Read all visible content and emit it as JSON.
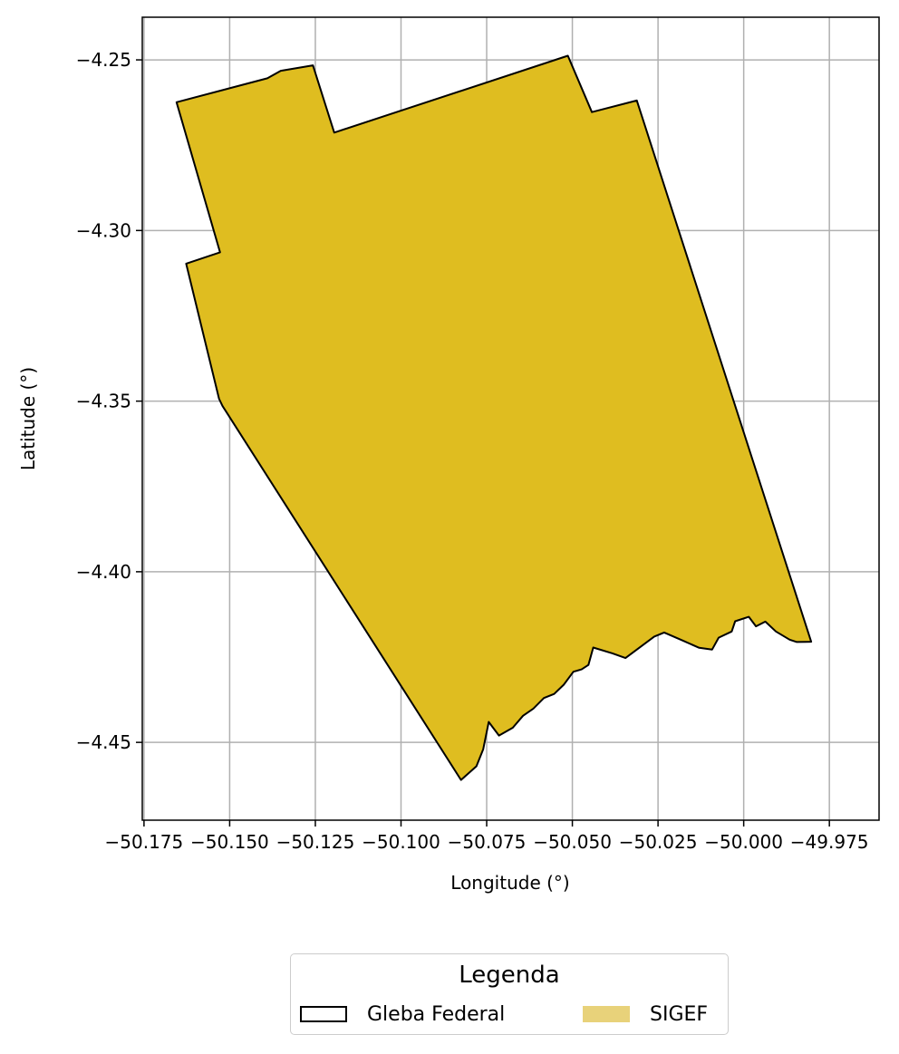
{
  "chart_data": {
    "type": "map",
    "xlabel": "Longitude (°)",
    "ylabel": "Latitude (°)",
    "xlim": [
      -50.1755,
      -49.9605
    ],
    "ylim": [
      -4.4728,
      -4.2375
    ],
    "grid": true,
    "x_ticks": [
      -50.175,
      -50.15,
      -50.125,
      -50.1,
      -50.075,
      -50.05,
      -50.025,
      -50.0,
      -49.975
    ],
    "x_tick_labels": [
      "−50.175",
      "−50.150",
      "−50.125",
      "−50.100",
      "−50.075",
      "−50.050",
      "−50.025",
      "−50.000",
      "−49.975"
    ],
    "y_ticks": [
      -4.25,
      -4.3,
      -4.35,
      -4.4,
      -4.45
    ],
    "y_tick_labels": [
      "−4.25",
      "−4.30",
      "−4.35",
      "−4.40",
      "−4.45"
    ],
    "fill_color": "#dfbd20",
    "edge_color": "#000000",
    "polygon": [
      [
        -50.1655,
        -4.2624
      ],
      [
        -50.139,
        -4.2554
      ],
      [
        -50.1351,
        -4.2532
      ],
      [
        -50.1257,
        -4.2516
      ],
      [
        -50.1195,
        -4.2713
      ],
      [
        -50.0513,
        -4.2488
      ],
      [
        -50.0443,
        -4.2653
      ],
      [
        -50.0312,
        -4.2619
      ],
      [
        -49.9803,
        -4.4205
      ],
      [
        -49.9845,
        -4.4206
      ],
      [
        -49.9866,
        -4.4199
      ],
      [
        -49.9906,
        -4.4175
      ],
      [
        -49.9937,
        -4.4146
      ],
      [
        -49.9964,
        -4.416
      ],
      [
        -49.9985,
        -4.4132
      ],
      [
        -50.0025,
        -4.4145
      ],
      [
        -50.0035,
        -4.4175
      ],
      [
        -50.0073,
        -4.4193
      ],
      [
        -50.0092,
        -4.4228
      ],
      [
        -50.013,
        -4.4223
      ],
      [
        -50.0184,
        -4.4199
      ],
      [
        -50.0232,
        -4.4178
      ],
      [
        -50.0261,
        -4.419
      ],
      [
        -50.0305,
        -4.4223
      ],
      [
        -50.0345,
        -4.4253
      ],
      [
        -50.0383,
        -4.4239
      ],
      [
        -50.0439,
        -4.4222
      ],
      [
        -50.0453,
        -4.4273
      ],
      [
        -50.0473,
        -4.4286
      ],
      [
        -50.0497,
        -4.4293
      ],
      [
        -50.0525,
        -4.4331
      ],
      [
        -50.0553,
        -4.4358
      ],
      [
        -50.0583,
        -4.437
      ],
      [
        -50.0614,
        -4.4401
      ],
      [
        -50.0644,
        -4.4422
      ],
      [
        -50.0674,
        -4.4457
      ],
      [
        -50.0714,
        -4.448
      ],
      [
        -50.0744,
        -4.444
      ],
      [
        -50.076,
        -4.452
      ],
      [
        -50.078,
        -4.457
      ],
      [
        -50.0825,
        -4.461
      ],
      [
        -50.1521,
        -4.3514
      ],
      [
        -50.1531,
        -4.3493
      ],
      [
        -50.1627,
        -4.3097
      ],
      [
        -50.1528,
        -4.3064
      ]
    ]
  },
  "legend": {
    "title": "Legenda",
    "items": [
      {
        "label": "Gleba Federal",
        "style": "outline",
        "edge_color": "#000000"
      },
      {
        "label": "SIGEF",
        "style": "fill",
        "color": "#e8d27a"
      }
    ]
  }
}
